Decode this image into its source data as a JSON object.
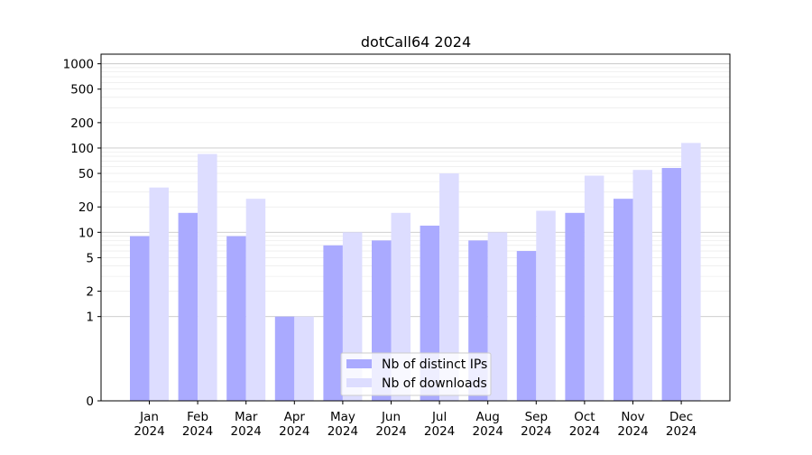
{
  "chart_data": {
    "type": "bar",
    "title": "dotCall64 2024",
    "xlabel": "",
    "ylabel": "",
    "scale": "symlog",
    "ylim": [
      0,
      1300
    ],
    "y_ticks": [
      {
        "value": 0,
        "label": "0"
      },
      {
        "value": 1,
        "label": "1"
      },
      {
        "value": 2,
        "label": "2"
      },
      {
        "value": 5,
        "label": "5"
      },
      {
        "value": 10,
        "label": "10"
      },
      {
        "value": 20,
        "label": "20"
      },
      {
        "value": 50,
        "label": "50"
      },
      {
        "value": 100,
        "label": "100"
      },
      {
        "value": 200,
        "label": "200"
      },
      {
        "value": 500,
        "label": "500"
      },
      {
        "value": 1000,
        "label": "1000"
      }
    ],
    "categories": [
      {
        "month": "Jan",
        "year": "2024"
      },
      {
        "month": "Feb",
        "year": "2024"
      },
      {
        "month": "Mar",
        "year": "2024"
      },
      {
        "month": "Apr",
        "year": "2024"
      },
      {
        "month": "May",
        "year": "2024"
      },
      {
        "month": "Jun",
        "year": "2024"
      },
      {
        "month": "Jul",
        "year": "2024"
      },
      {
        "month": "Aug",
        "year": "2024"
      },
      {
        "month": "Sep",
        "year": "2024"
      },
      {
        "month": "Oct",
        "year": "2024"
      },
      {
        "month": "Nov",
        "year": "2024"
      },
      {
        "month": "Dec",
        "year": "2024"
      }
    ],
    "series": [
      {
        "name": "Nb of distinct IPs",
        "color": "#aaaaff",
        "values": [
          9,
          17,
          9,
          1,
          7,
          8,
          12,
          8,
          6,
          17,
          25,
          58
        ]
      },
      {
        "name": "Nb of downloads",
        "color": "#ddddff",
        "values": [
          34,
          85,
          25,
          1,
          10,
          17,
          50,
          10,
          18,
          47,
          55,
          115
        ]
      }
    ],
    "grid": true,
    "legend_position": "bottom-center"
  }
}
